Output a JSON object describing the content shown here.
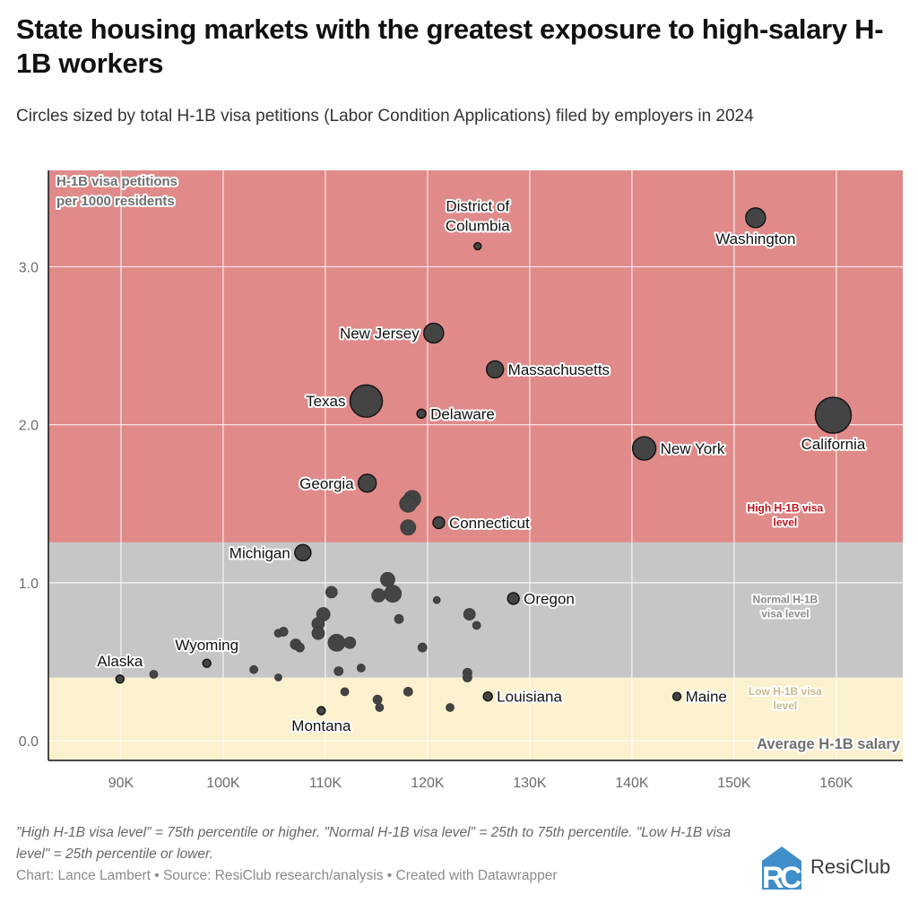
{
  "header": {
    "title": "State housing markets with the greatest exposure to high-salary H-1B workers",
    "subtitle": "Circles sized by total H-1B visa petitions (Labor Condition Applications) filed by employers in 2024"
  },
  "footer": {
    "notes": "\"High H-1B visa level\" = 75th percentile or higher. \"Normal H-1B visa level\" = 25th to 75th percentile. \"Low H-1B visa level\" = 25th percentile or lower.",
    "source": "Chart: Lance Lambert • Source: ResiClub research/analysis • Created with Datawrapper",
    "logo_text": "ResiClub",
    "logo_mark": "RC"
  },
  "chart_data": {
    "type": "scatter",
    "title": "State housing markets with the greatest exposure to high-salary H-1B workers",
    "xlabel": "Average H-1B salary",
    "ylabel": "H-1B visa petitions per 1000 residents",
    "xlim": [
      82.9,
      166.5
    ],
    "ylim": [
      -0.125,
      3.61
    ],
    "x_unit": "K",
    "x_ticks": [
      90,
      100,
      110,
      120,
      130,
      140,
      150,
      160
    ],
    "x_tick_labels": [
      "90K",
      "100K",
      "110K",
      "120K",
      "130K",
      "140K",
      "150K",
      "160K"
    ],
    "y_ticks": [
      0,
      1,
      2,
      3
    ],
    "y_tick_labels": [
      "0.0",
      "1.0",
      "2.0",
      "3.0"
    ],
    "grid": true,
    "size_encoding": "Total H-1B visa petitions (relative)",
    "bands": [
      {
        "name": "High H-1B visa level",
        "from": 1.255,
        "to": 3.61,
        "color": "#e08a8a",
        "label_color": "#c0101a"
      },
      {
        "name": "Normal H-1B visa level",
        "from": 0.4,
        "to": 1.255,
        "color": "#c6c6c6",
        "label_color": "#8a8a8a"
      },
      {
        "name": "Low H-1B visa level",
        "from": -0.125,
        "to": 0.4,
        "color": "#fcf1cf",
        "label_color": "#c9b98a"
      }
    ],
    "points": [
      {
        "label": "District of Columbia",
        "x": 124.9,
        "y": 3.13,
        "size": 4,
        "label_pos": "top"
      },
      {
        "label": "Washington",
        "x": 152.1,
        "y": 3.31,
        "size": 11,
        "label_pos": "bottom"
      },
      {
        "label": "New Jersey",
        "x": 120.6,
        "y": 2.58,
        "size": 11,
        "label_pos": "left"
      },
      {
        "label": "Massachusetts",
        "x": 126.6,
        "y": 2.35,
        "size": 9.5,
        "label_pos": "right"
      },
      {
        "label": "Texas",
        "x": 114.0,
        "y": 2.15,
        "size": 18,
        "label_pos": "left"
      },
      {
        "label": "Delaware",
        "x": 119.4,
        "y": 2.07,
        "size": 5,
        "label_pos": "right"
      },
      {
        "label": "New York",
        "x": 141.2,
        "y": 1.85,
        "size": 13,
        "label_pos": "right"
      },
      {
        "label": "California",
        "x": 159.7,
        "y": 2.06,
        "size": 20,
        "label_pos": "bottom"
      },
      {
        "label": "Georgia",
        "x": 114.1,
        "y": 1.63,
        "size": 10,
        "label_pos": "left"
      },
      {
        "label": "Connecticut",
        "x": 121.1,
        "y": 1.38,
        "size": 6.5,
        "label_pos": "right"
      },
      {
        "label": "Michigan",
        "x": 107.8,
        "y": 1.19,
        "size": 9,
        "label_pos": "left"
      },
      {
        "label": "Oregon",
        "x": 128.4,
        "y": 0.9,
        "size": 6.5,
        "label_pos": "right"
      },
      {
        "label": "Alaska",
        "x": 89.9,
        "y": 0.39,
        "size": 4.5,
        "label_pos": "top"
      },
      {
        "label": "Wyoming",
        "x": 98.4,
        "y": 0.49,
        "size": 4.5,
        "label_pos": "top"
      },
      {
        "label": "Louisiana",
        "x": 125.9,
        "y": 0.28,
        "size": 5,
        "label_pos": "right"
      },
      {
        "label": "Maine",
        "x": 144.4,
        "y": 0.28,
        "size": 4.5,
        "label_pos": "right"
      },
      {
        "label": "Montana",
        "x": 109.6,
        "y": 0.19,
        "size": 4.5,
        "label_pos": "bottom"
      },
      {
        "label": "",
        "x": 118.5,
        "y": 1.53,
        "size": 9.5
      },
      {
        "label": "",
        "x": 118.1,
        "y": 1.5,
        "size": 9.5
      },
      {
        "label": "",
        "x": 118.1,
        "y": 1.35,
        "size": 8.5
      },
      {
        "label": "",
        "x": 93.2,
        "y": 0.42,
        "size": 4.5
      },
      {
        "label": "",
        "x": 116.1,
        "y": 1.02,
        "size": 8
      },
      {
        "label": "",
        "x": 116.6,
        "y": 0.93,
        "size": 9.5
      },
      {
        "label": "",
        "x": 115.2,
        "y": 0.92,
        "size": 7.5
      },
      {
        "label": "",
        "x": 110.6,
        "y": 0.94,
        "size": 6.5
      },
      {
        "label": "",
        "x": 109.8,
        "y": 0.8,
        "size": 7.5
      },
      {
        "label": "",
        "x": 109.3,
        "y": 0.74,
        "size": 7
      },
      {
        "label": "",
        "x": 109.3,
        "y": 0.68,
        "size": 7
      },
      {
        "label": "",
        "x": 111.1,
        "y": 0.62,
        "size": 9.5
      },
      {
        "label": "",
        "x": 112.4,
        "y": 0.62,
        "size": 6.5
      },
      {
        "label": "",
        "x": 105.4,
        "y": 0.68,
        "size": 4.5
      },
      {
        "label": "",
        "x": 105.9,
        "y": 0.69,
        "size": 5
      },
      {
        "label": "",
        "x": 107.1,
        "y": 0.61,
        "size": 6
      },
      {
        "label": "",
        "x": 107.5,
        "y": 0.59,
        "size": 5
      },
      {
        "label": "",
        "x": 117.2,
        "y": 0.77,
        "size": 5
      },
      {
        "label": "",
        "x": 120.9,
        "y": 0.89,
        "size": 4
      },
      {
        "label": "",
        "x": 124.1,
        "y": 0.8,
        "size": 6.5
      },
      {
        "label": "",
        "x": 124.8,
        "y": 0.73,
        "size": 4.5
      },
      {
        "label": "",
        "x": 119.5,
        "y": 0.59,
        "size": 5
      },
      {
        "label": "",
        "x": 103.0,
        "y": 0.45,
        "size": 4.5
      },
      {
        "label": "",
        "x": 105.4,
        "y": 0.4,
        "size": 4
      },
      {
        "label": "",
        "x": 111.3,
        "y": 0.44,
        "size": 5
      },
      {
        "label": "",
        "x": 113.5,
        "y": 0.46,
        "size": 4.5
      },
      {
        "label": "",
        "x": 123.9,
        "y": 0.43,
        "size": 5
      },
      {
        "label": "",
        "x": 123.9,
        "y": 0.4,
        "size": 5
      },
      {
        "label": "",
        "x": 111.9,
        "y": 0.31,
        "size": 4.5
      },
      {
        "label": "",
        "x": 115.1,
        "y": 0.26,
        "size": 5
      },
      {
        "label": "",
        "x": 115.3,
        "y": 0.21,
        "size": 4.5
      },
      {
        "label": "",
        "x": 118.1,
        "y": 0.31,
        "size": 5
      },
      {
        "label": "",
        "x": 122.2,
        "y": 0.21,
        "size": 4.5
      }
    ],
    "annotations": [
      {
        "text": "High H-1B visa level",
        "x": 155,
        "y": 1.45,
        "band": "high"
      },
      {
        "text": "Normal H-1B visa level",
        "x": 155,
        "y": 0.87,
        "band": "normal"
      },
      {
        "text": "Low H-1B visa level",
        "x": 155,
        "y": 0.29,
        "band": "low"
      }
    ]
  }
}
